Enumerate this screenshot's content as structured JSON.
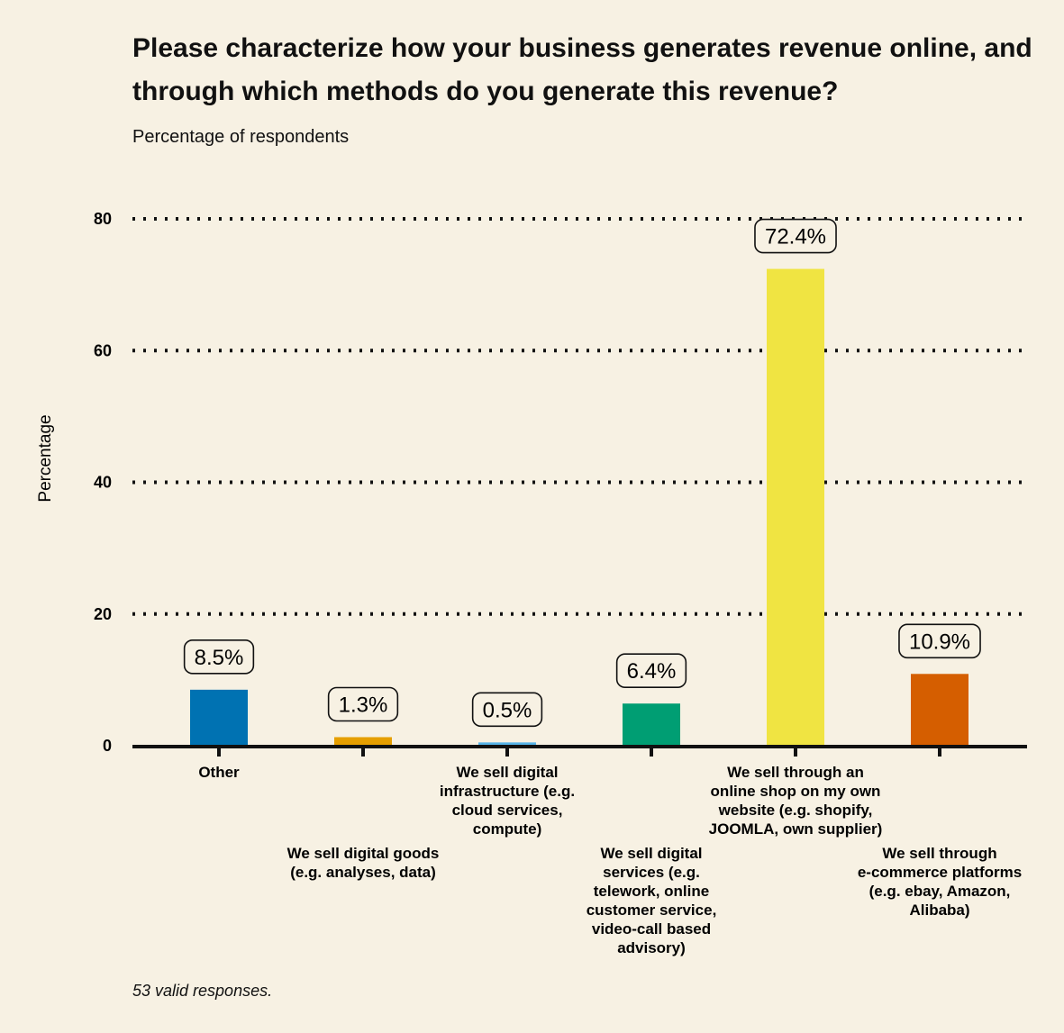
{
  "chart_data": {
    "type": "bar",
    "title": "Please characterize how your business generates revenue online, and through which methods do you generate this revenue?",
    "subtitle": "Percentage of respondents",
    "xlabel": "",
    "ylabel": "Percentage",
    "ylim": [
      0,
      80
    ],
    "yticks": [
      0,
      20,
      40,
      60,
      80
    ],
    "ytick_labels": [
      "0",
      "20",
      "40",
      "60",
      "80"
    ],
    "grid": true,
    "legend": "none",
    "categories": [
      "Other",
      "We sell digital goods (e.g. analyses, data)",
      "We sell digital infrastructure (e.g. cloud services, compute)",
      "We sell digital services (e.g. telework, online customer service, video-call based advisory)",
      "We sell through an online shop on my own website (e.g. shopify, JOOMLA, own supplier)",
      "We sell through e-commerce platforms (e.g. ebay, Amazon, Alibaba)"
    ],
    "category_lines": [
      [
        "Other"
      ],
      [
        "We sell digital goods",
        "(e.g. analyses, data)"
      ],
      [
        "We sell digital",
        "infrastructure (e.g.",
        "cloud services,",
        "compute)"
      ],
      [
        "We sell digital",
        "services (e.g.",
        "telework, online",
        "customer service,",
        "video-call based",
        "advisory)"
      ],
      [
        "We sell through an",
        "online shop on my own",
        "website (e.g. shopify,",
        "JOOMLA, own supplier)"
      ],
      [
        "We sell through",
        "e-commerce platforms",
        "(e.g. ebay, Amazon,",
        "Alibaba)"
      ]
    ],
    "values": [
      8.5,
      1.3,
      0.5,
      6.4,
      72.4,
      10.9
    ],
    "value_labels": [
      "8.5%",
      "1.3%",
      "0.5%",
      "6.4%",
      "72.4%",
      "10.9%"
    ],
    "colors": [
      "#0072b2",
      "#e69f00",
      "#56b4e9",
      "#009e73",
      "#f0e442",
      "#d55e00"
    ],
    "footnote": "53 valid responses."
  }
}
